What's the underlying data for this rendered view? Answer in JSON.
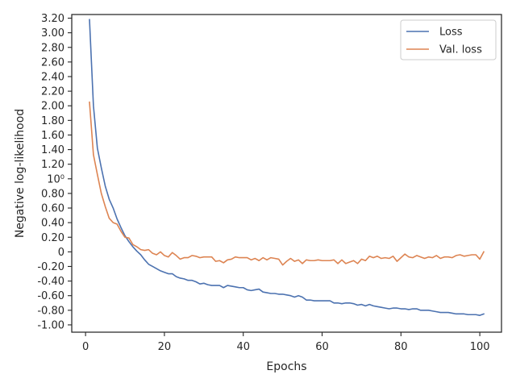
{
  "chart_data": {
    "type": "line",
    "xlabel": "Epochs",
    "ylabel": "Negative log-likelihood",
    "xlim": [
      -3.5,
      105.5
    ],
    "ylim": [
      -1.1,
      3.25
    ],
    "x_ticks": [
      0,
      20,
      40,
      60,
      80,
      100
    ],
    "x_tick_labels": [
      "0",
      "20",
      "40",
      "60",
      "80",
      "100"
    ],
    "y_ticks": [
      -1.0,
      -0.8,
      -0.6,
      -0.4,
      -0.2,
      0,
      0.2,
      0.4,
      0.6,
      0.8,
      1.0,
      1.2,
      1.4,
      1.6,
      1.8,
      2.0,
      2.2,
      2.4,
      2.6,
      2.8,
      3.0,
      3.2
    ],
    "y_tick_labels": [
      "-1.00",
      "-0.80",
      "-0.60",
      "-0.40",
      "-0.20",
      "0",
      "0.20",
      "0.40",
      "0.60",
      "0.80",
      "10⁰",
      "1.20",
      "1.40",
      "1.60",
      "1.80",
      "2.00",
      "2.20",
      "2.40",
      "2.60",
      "2.80",
      "3.00",
      "3.20"
    ],
    "grid": false,
    "legend_position": "top-right",
    "series": [
      {
        "name": "Loss",
        "color": "#4c72b0",
        "x": [
          1,
          2,
          3,
          4,
          5,
          6,
          7,
          8,
          9,
          10,
          11,
          12,
          13,
          14,
          15,
          16,
          17,
          18,
          19,
          20,
          21,
          22,
          23,
          24,
          25,
          26,
          27,
          28,
          29,
          30,
          31,
          32,
          33,
          34,
          35,
          36,
          37,
          38,
          39,
          40,
          41,
          42,
          43,
          44,
          45,
          46,
          47,
          48,
          49,
          50,
          51,
          52,
          53,
          54,
          55,
          56,
          57,
          58,
          59,
          60,
          61,
          62,
          63,
          64,
          65,
          66,
          67,
          68,
          69,
          70,
          71,
          72,
          73,
          74,
          75,
          76,
          77,
          78,
          79,
          80,
          81,
          82,
          83,
          84,
          85,
          86,
          87,
          88,
          89,
          90,
          91,
          92,
          93,
          94,
          95,
          96,
          97,
          98,
          99,
          100,
          101
        ],
        "values": [
          3.18,
          2.0,
          1.42,
          1.15,
          0.9,
          0.72,
          0.6,
          0.45,
          0.33,
          0.22,
          0.14,
          0.07,
          0.01,
          -0.04,
          -0.11,
          -0.17,
          -0.2,
          -0.23,
          -0.26,
          -0.28,
          -0.3,
          -0.3,
          -0.34,
          -0.36,
          -0.37,
          -0.39,
          -0.39,
          -0.41,
          -0.44,
          -0.43,
          -0.45,
          -0.46,
          -0.46,
          -0.46,
          -0.49,
          -0.46,
          -0.47,
          -0.48,
          -0.49,
          -0.49,
          -0.52,
          -0.53,
          -0.52,
          -0.51,
          -0.55,
          -0.56,
          -0.57,
          -0.57,
          -0.58,
          -0.58,
          -0.59,
          -0.6,
          -0.62,
          -0.6,
          -0.62,
          -0.66,
          -0.66,
          -0.67,
          -0.67,
          -0.67,
          -0.67,
          -0.67,
          -0.7,
          -0.7,
          -0.71,
          -0.7,
          -0.7,
          -0.71,
          -0.73,
          -0.72,
          -0.74,
          -0.72,
          -0.74,
          -0.75,
          -0.76,
          -0.77,
          -0.78,
          -0.77,
          -0.77,
          -0.78,
          -0.78,
          -0.79,
          -0.78,
          -0.78,
          -0.8,
          -0.8,
          -0.8,
          -0.81,
          -0.82,
          -0.83,
          -0.83,
          -0.83,
          -0.84,
          -0.85,
          -0.85,
          -0.85,
          -0.86,
          -0.86,
          -0.86,
          -0.87,
          -0.85
        ]
      },
      {
        "name": "Val. loss",
        "color": "#dd8452",
        "x": [
          1,
          2,
          3,
          4,
          5,
          6,
          7,
          8,
          9,
          10,
          11,
          12,
          13,
          14,
          15,
          16,
          17,
          18,
          19,
          20,
          21,
          22,
          23,
          24,
          25,
          26,
          27,
          28,
          29,
          30,
          31,
          32,
          33,
          34,
          35,
          36,
          37,
          38,
          39,
          40,
          41,
          42,
          43,
          44,
          45,
          46,
          47,
          48,
          49,
          50,
          51,
          52,
          53,
          54,
          55,
          56,
          57,
          58,
          59,
          60,
          61,
          62,
          63,
          64,
          65,
          66,
          67,
          68,
          69,
          70,
          71,
          72,
          73,
          74,
          75,
          76,
          77,
          78,
          79,
          80,
          81,
          82,
          83,
          84,
          85,
          86,
          87,
          88,
          89,
          90,
          91,
          92,
          93,
          94,
          95,
          96,
          97,
          98,
          99,
          100,
          101
        ],
        "values": [
          2.05,
          1.33,
          1.06,
          0.8,
          0.62,
          0.46,
          0.4,
          0.38,
          0.28,
          0.2,
          0.19,
          0.1,
          0.07,
          0.03,
          0.02,
          0.03,
          -0.02,
          -0.04,
          0.0,
          -0.05,
          -0.07,
          -0.01,
          -0.05,
          -0.1,
          -0.08,
          -0.08,
          -0.05,
          -0.06,
          -0.08,
          -0.07,
          -0.07,
          -0.07,
          -0.13,
          -0.12,
          -0.15,
          -0.11,
          -0.1,
          -0.07,
          -0.08,
          -0.08,
          -0.08,
          -0.11,
          -0.09,
          -0.12,
          -0.08,
          -0.11,
          -0.08,
          -0.09,
          -0.1,
          -0.18,
          -0.13,
          -0.09,
          -0.13,
          -0.11,
          -0.16,
          -0.11,
          -0.12,
          -0.12,
          -0.11,
          -0.12,
          -0.12,
          -0.12,
          -0.11,
          -0.16,
          -0.11,
          -0.16,
          -0.14,
          -0.12,
          -0.16,
          -0.1,
          -0.12,
          -0.06,
          -0.08,
          -0.06,
          -0.09,
          -0.08,
          -0.09,
          -0.06,
          -0.13,
          -0.08,
          -0.03,
          -0.07,
          -0.08,
          -0.05,
          -0.07,
          -0.09,
          -0.07,
          -0.08,
          -0.05,
          -0.09,
          -0.07,
          -0.07,
          -0.08,
          -0.05,
          -0.04,
          -0.06,
          -0.05,
          -0.04,
          -0.04,
          -0.1,
          0.0
        ]
      }
    ]
  }
}
